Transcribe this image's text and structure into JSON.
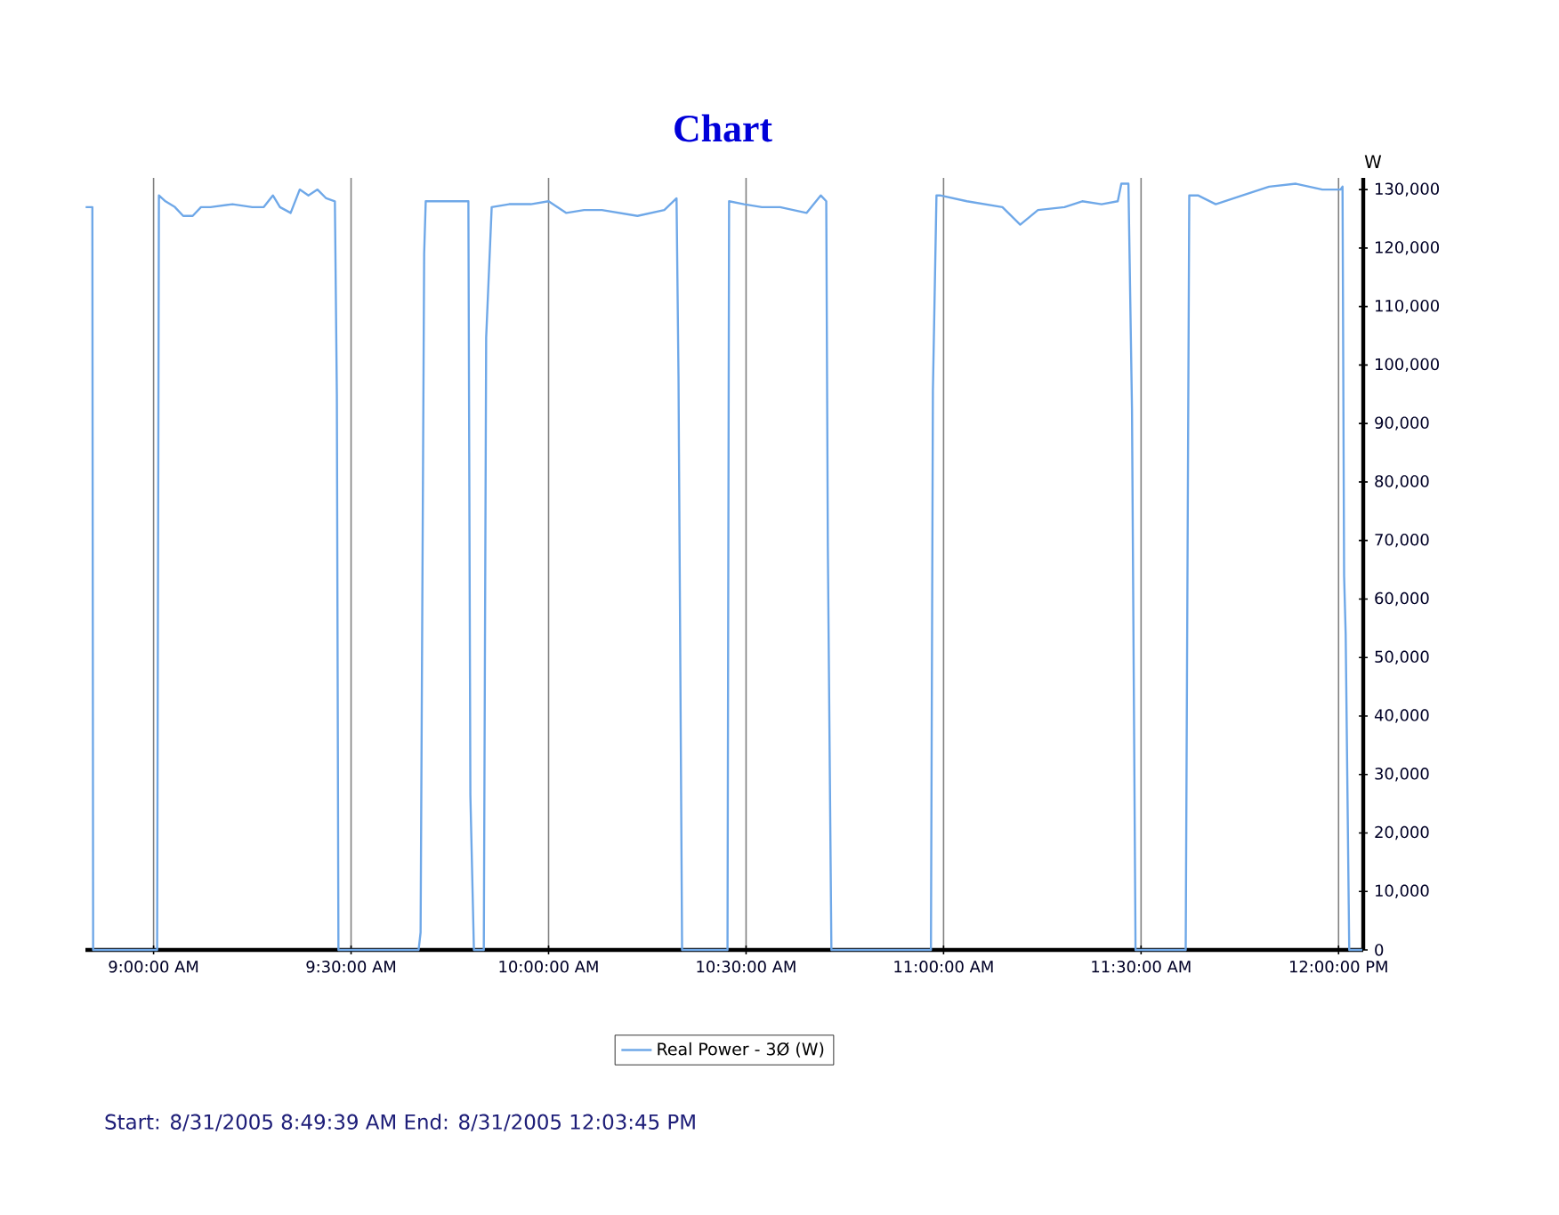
{
  "chart_data": {
    "type": "line",
    "title": "Chart",
    "ylabel": "W",
    "x": [
      8.828,
      8.845,
      8.847,
      9.009,
      9.0135,
      9.03,
      9.054,
      9.075,
      9.099,
      9.12,
      9.144,
      9.2,
      9.25,
      9.279,
      9.302,
      9.32,
      9.347,
      9.37,
      9.392,
      9.415,
      9.437,
      9.459,
      9.464,
      9.468,
      9.671,
      9.676,
      9.685,
      9.689,
      9.74,
      9.797,
      9.802,
      9.811,
      9.836,
      9.842,
      9.856,
      9.9,
      9.955,
      10.0,
      10.045,
      10.09,
      10.135,
      10.18,
      10.225,
      10.293,
      10.324,
      10.329,
      10.338,
      10.453,
      10.457,
      10.495,
      10.54,
      10.586,
      10.653,
      10.689,
      10.703,
      10.707,
      10.716,
      10.968,
      10.973,
      10.982,
      10.991,
      11.059,
      11.149,
      11.194,
      11.239,
      11.306,
      11.351,
      11.4,
      11.441,
      11.45,
      11.468,
      11.477,
      11.486,
      11.613,
      11.622,
      11.644,
      11.689,
      11.757,
      11.824,
      11.892,
      11.959,
      12.005,
      12.01,
      12.014,
      12.018,
      12.027,
      12.06
    ],
    "series": [
      {
        "name": "Real Power - 3Ø (W)",
        "color": "#6fa8e8",
        "values": [
          127000,
          127000,
          0,
          0,
          129000,
          128000,
          127000,
          125500,
          125500,
          127000,
          127000,
          127500,
          127000,
          127000,
          129000,
          127000,
          126000,
          130000,
          129000,
          130000,
          128500,
          128000,
          95000,
          0,
          0,
          3000,
          119000,
          128000,
          128000,
          128000,
          26500,
          0,
          0,
          104700,
          127000,
          127500,
          127500,
          128000,
          126000,
          126500,
          126500,
          126000,
          125500,
          126500,
          128500,
          97700,
          0,
          0,
          128000,
          127500,
          127000,
          127000,
          126000,
          129000,
          128000,
          69000,
          0,
          0,
          95600,
          129000,
          129000,
          128000,
          127000,
          124000,
          126500,
          127000,
          128000,
          127500,
          128000,
          131000,
          131000,
          92500,
          0,
          0,
          129000,
          129000,
          127500,
          129000,
          130500,
          131000,
          130000,
          130000,
          130500,
          64000,
          54000,
          0,
          0
        ]
      }
    ],
    "xlim": [
      8.8275,
      12.0625
    ],
    "ylim": [
      0,
      132000
    ],
    "xticks": [
      {
        "value": 9,
        "label": "9:00:00 AM"
      },
      {
        "value": 9.5,
        "label": "9:30:00 AM"
      },
      {
        "value": 10,
        "label": "10:00:00 AM"
      },
      {
        "value": 10.5,
        "label": "10:30:00 AM"
      },
      {
        "value": 11,
        "label": "11:00:00 AM"
      },
      {
        "value": 11.5,
        "label": "11:30:00 AM"
      },
      {
        "value": 12,
        "label": "12:00:00 PM"
      }
    ],
    "yticks": [
      0,
      {
        "value": 10000,
        "label": "10,000"
      },
      {
        "value": 20000,
        "label": "20,000"
      },
      {
        "value": 30000,
        "label": "30,000"
      },
      {
        "value": 40000,
        "label": "40,000"
      },
      {
        "value": 50000,
        "label": "50,000"
      },
      {
        "value": 60000,
        "label": "60,000"
      },
      {
        "value": 70000,
        "label": "70,000"
      },
      {
        "value": 80000,
        "label": "80,000"
      },
      {
        "value": 90000,
        "label": "90,000"
      },
      {
        "value": 100000,
        "label": "100,000"
      },
      {
        "value": 110000,
        "label": "110,000"
      },
      {
        "value": 120000,
        "label": "120,000"
      },
      {
        "value": 130000,
        "label": "130,000"
      }
    ],
    "grid": "x",
    "legend": "bottom",
    "marker": "none",
    "line_style": "solid",
    "annotations": [
      "Start: 8/31/2005 8:49:39 AM End: 8/31/2005 12:03:45 PM"
    ]
  }
}
